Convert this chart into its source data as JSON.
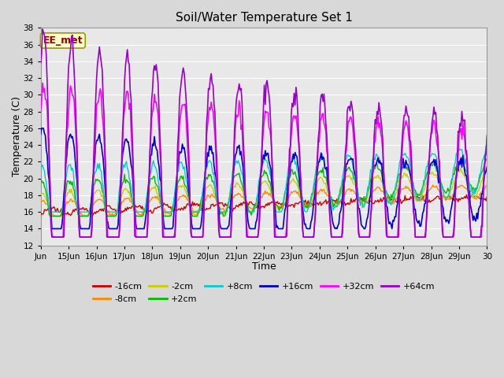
{
  "title": "Soil/Water Temperature Set 1",
  "xlabel": "Time",
  "ylabel": "Temperature (C)",
  "ylim": [
    12,
    38
  ],
  "yticks": [
    12,
    14,
    16,
    18,
    20,
    22,
    24,
    26,
    28,
    30,
    32,
    34,
    36,
    38
  ],
  "annotation_text": "EE_met",
  "annotation_bg": "#ffffcc",
  "annotation_border": "#999900",
  "annotation_text_color": "#990000",
  "fig_bg_color": "#d8d8d8",
  "plot_bg_color": "#e8e8e8",
  "colors": {
    "-16cm": "#cc0000",
    "-8cm": "#ff8800",
    "-2cm": "#cccc00",
    "+2cm": "#00bb00",
    "+8cm": "#00cccc",
    "+16cm": "#0000cc",
    "+32cm": "#ff00ff",
    "+64cm": "#9900cc"
  },
  "legend_labels": [
    "-16cm",
    "-8cm",
    "-2cm",
    "+2cm",
    "+8cm",
    "+16cm",
    "+32cm",
    "+64cm"
  ],
  "x_tick_labels": [
    "Jun",
    "15Jun",
    "16Jun",
    "17Jun",
    "18Jun",
    "19Jun",
    "20Jun",
    "21Jun",
    "22Jun",
    "23Jun",
    "24Jun",
    "25Jun",
    "26Jun",
    "27Jun",
    "28Jun",
    "29Jun",
    "30"
  ],
  "figsize": [
    6.4,
    4.8
  ],
  "dpi": 100
}
